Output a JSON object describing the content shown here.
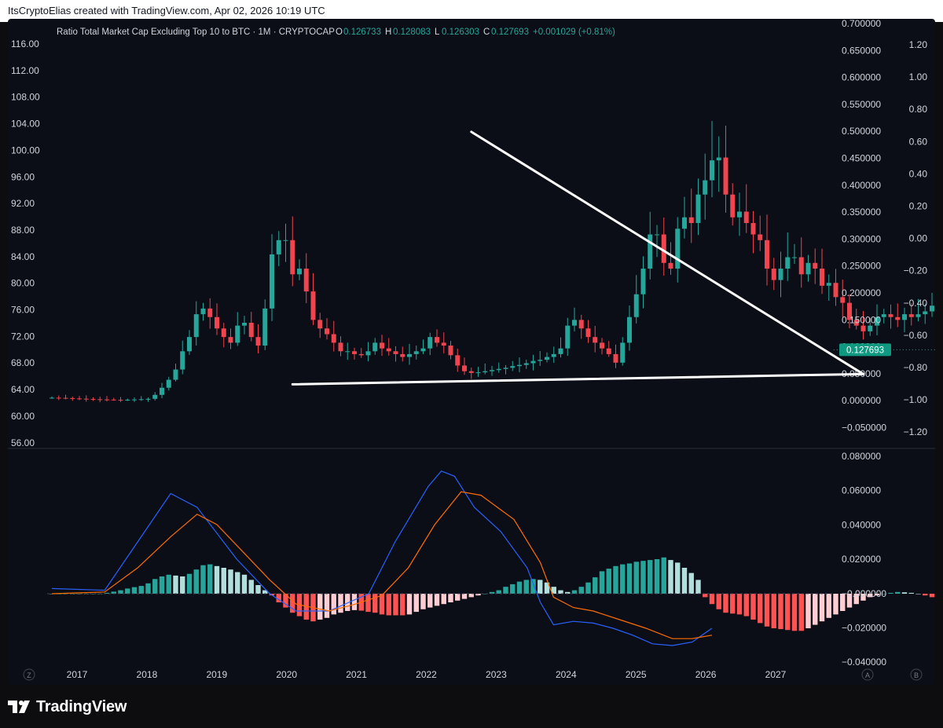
{
  "header": {
    "attribution": "ItsCryptoElias created with TradingView.com, Apr 02, 2026 10:19 UTC"
  },
  "legend": {
    "symbol": "Ratio Total Market Cap Excluding Top 10 to BTC · 1M · CRYPTOCAP",
    "o_label": "O",
    "o_value": "0.126733",
    "h_label": "H",
    "h_value": "0.128083",
    "l_label": "L",
    "l_value": "0.126303",
    "c_label": "C",
    "c_value": "0.127693",
    "change": "+0.001029 (+0.81%)"
  },
  "colors": {
    "background": "#0b0e16",
    "up": "#26a69a",
    "down": "#f0444f",
    "hist_up_strong": "#26a69a",
    "hist_up_weak": "#b2dfdb",
    "hist_down_strong": "#ff5252",
    "hist_down_weak": "#ffcdd2",
    "macd_line": "#2962ff",
    "signal_line": "#ff6d00",
    "price_badge": "#0f9981",
    "axis_text": "#d1d4dc",
    "trendline": "#ffffff"
  },
  "last_price_badge": "0.127693",
  "axes": {
    "left_ticks": [
      "116.00",
      "112.00",
      "108.00",
      "104.00",
      "100.00",
      "96.00",
      "92.00",
      "88.00",
      "84.00",
      "80.00",
      "76.00",
      "72.00",
      "68.00",
      "64.00",
      "60.00",
      "56.00"
    ],
    "right_ticks": [
      "0.700000",
      "0.650000",
      "0.600000",
      "0.550000",
      "0.500000",
      "0.450000",
      "0.400000",
      "0.350000",
      "0.300000",
      "0.250000",
      "0.200000",
      "0.150000",
      "0.100000",
      "0.050000",
      "0.000000",
      "−0.050000"
    ],
    "far_right_ticks": [
      "1.20",
      "1.00",
      "0.80",
      "0.60",
      "0.40",
      "0.20",
      "0.00",
      "−0.20",
      "−0.40",
      "−0.60",
      "−0.80",
      "−1.00",
      "−1.20"
    ],
    "macd_ticks": [
      "0.080000",
      "0.060000",
      "0.040000",
      "0.020000",
      "−0.000000",
      "−0.020000",
      "−0.040000"
    ],
    "x_labels": [
      "2017",
      "2018",
      "2019",
      "2020",
      "2021",
      "2022",
      "2023",
      "2024",
      "2025",
      "2026",
      "2027"
    ],
    "corner_left": "Z",
    "corner_a": "A",
    "corner_b": "B"
  },
  "chart_data": [
    {
      "type": "candlestick",
      "title": "Ratio Total Market Cap Excluding Top 10 to BTC · 1M · CRYPTOCAP",
      "ylim": [
        -0.08,
        0.72
      ],
      "y_scale": "linear",
      "candles_close": [
        0.0435,
        0.0432,
        0.0428,
        0.0422,
        0.0418,
        0.0412,
        0.0408,
        0.0405,
        0.0402,
        0.0398,
        0.0396,
        0.04,
        0.0404,
        0.0409,
        0.0415,
        0.0485,
        0.061,
        0.075,
        0.093,
        0.125,
        0.15,
        0.19,
        0.2,
        0.185,
        0.165,
        0.15,
        0.14,
        0.17,
        0.175,
        0.15,
        0.135,
        0.2,
        0.295,
        0.32,
        0.32,
        0.26,
        0.27,
        0.23,
        0.18,
        0.165,
        0.155,
        0.14,
        0.125,
        0.125,
        0.12,
        0.118,
        0.125,
        0.14,
        0.13,
        0.125,
        0.12,
        0.115,
        0.12,
        0.125,
        0.13,
        0.15,
        0.14,
        0.135,
        0.118,
        0.1,
        0.09,
        0.087,
        0.088,
        0.09,
        0.092,
        0.094,
        0.096,
        0.099,
        0.101,
        0.104,
        0.108,
        0.11,
        0.115,
        0.12,
        0.13,
        0.17,
        0.18,
        0.165,
        0.15,
        0.14,
        0.13,
        0.12,
        0.105,
        0.14,
        0.185,
        0.225,
        0.27,
        0.33,
        0.33,
        0.28,
        0.27,
        0.34,
        0.36,
        0.35,
        0.4,
        0.425,
        0.46,
        0.465,
        0.4,
        0.36,
        0.37,
        0.35,
        0.33,
        0.32,
        0.27,
        0.25,
        0.27,
        0.29,
        0.29,
        0.26,
        0.28,
        0.27,
        0.24,
        0.245,
        0.22,
        0.21,
        0.18,
        0.17,
        0.16,
        0.17,
        0.185,
        0.19,
        0.185,
        0.18,
        0.19,
        0.185,
        0.19,
        0.195,
        0.205,
        0.2,
        0.19,
        0.195,
        0.175,
        0.155,
        0.15,
        0.145,
        0.14,
        0.145,
        0.15,
        0.16,
        0.15,
        0.15,
        0.135,
        0.15,
        0.155,
        0.14,
        0.135,
        0.125,
        0.115,
        0.11,
        0.105,
        0.1,
        0.11,
        0.12,
        0.115,
        0.11,
        0.11,
        0.105,
        0.125,
        0.128,
        0.122,
        0.12,
        0.123,
        0.122,
        0.1267,
        0.1277
      ]
    },
    {
      "type": "line",
      "name": "Trendline",
      "points": [
        [
          "2021-10",
          0.51
        ],
        [
          "2026-07",
          0.085
        ]
      ]
    },
    {
      "type": "line",
      "name": "Trendline",
      "points": [
        [
          "2019-08",
          0.067
        ],
        [
          "2026-07",
          0.085
        ]
      ]
    },
    {
      "type": "bar",
      "title": "MACD",
      "ylim": [
        -0.042,
        0.082
      ],
      "histogram": [
        0.0,
        0.0,
        0.0,
        0.0,
        0.0,
        0.0,
        0.0,
        0.0,
        0.0005,
        0.0012,
        0.002,
        0.003,
        0.0038,
        0.0045,
        0.006,
        0.0085,
        0.01,
        0.011,
        0.0105,
        0.01,
        0.0115,
        0.014,
        0.0165,
        0.017,
        0.016,
        0.015,
        0.014,
        0.0125,
        0.011,
        0.008,
        0.005,
        0.002,
        -0.001,
        -0.005,
        -0.008,
        -0.011,
        -0.013,
        -0.015,
        -0.016,
        -0.015,
        -0.014,
        -0.012,
        -0.011,
        -0.01,
        -0.0095,
        -0.0098,
        -0.0105,
        -0.011,
        -0.012,
        -0.0125,
        -0.0125,
        -0.0125,
        -0.012,
        -0.0105,
        -0.009,
        -0.008,
        -0.007,
        -0.006,
        -0.005,
        -0.004,
        -0.003,
        -0.002,
        -0.001,
        0.0,
        0.001,
        0.002,
        0.004,
        0.0055,
        0.007,
        0.008,
        0.0085,
        0.008,
        0.0065,
        0.004,
        0.002,
        0.001,
        0.002,
        0.004,
        0.0065,
        0.0095,
        0.013,
        0.0145,
        0.016,
        0.017,
        0.0175,
        0.0185,
        0.019,
        0.0195,
        0.02,
        0.021,
        0.0195,
        0.018,
        0.015,
        0.012,
        0.008,
        -0.002,
        -0.006,
        -0.009,
        -0.011,
        -0.0115,
        -0.012,
        -0.013,
        -0.015,
        -0.017,
        -0.019,
        -0.02,
        -0.0205,
        -0.021,
        -0.0215,
        -0.0215,
        -0.02,
        -0.018,
        -0.016,
        -0.014,
        -0.012,
        -0.01,
        -0.008,
        -0.006,
        -0.004,
        -0.002,
        -0.001,
        0.0,
        0.0005,
        0.001,
        0.0008,
        0.0005,
        0.0,
        -0.001,
        -0.002,
        -0.003,
        -0.004,
        -0.005,
        -0.0055,
        -0.0058,
        -0.006,
        -0.006,
        -0.0058,
        -0.0055,
        -0.005,
        -0.0045,
        -0.004,
        -0.004,
        -0.0045,
        -0.005,
        -0.0055,
        -0.0058,
        -0.006,
        -0.006,
        -0.0058,
        -0.0055,
        -0.0045,
        -0.0035,
        -0.0025,
        -0.0015,
        -0.0008,
        0.0,
        0.0005,
        0.001,
        0.0015,
        0.002,
        0.0025,
        0.003,
        0.0035
      ],
      "series": [
        {
          "name": "MACD",
          "anchor_points": [
            [
              0,
              0.003
            ],
            [
              16,
              0.002
            ],
            [
              26,
              0.03
            ],
            [
              36,
              0.058
            ],
            [
              44,
              0.05
            ],
            [
              56,
              0.02
            ],
            [
              66,
              0.0
            ],
            [
              74,
              -0.01
            ],
            [
              84,
              -0.01
            ],
            [
              90,
              -0.005
            ],
            [
              96,
              0.0
            ],
            [
              104,
              0.03
            ],
            [
              114,
              0.062
            ],
            [
              118,
              0.071
            ],
            [
              122,
              0.068
            ],
            [
              128,
              0.05
            ],
            [
              136,
              0.036
            ],
            [
              144,
              0.015
            ],
            [
              148,
              -0.005
            ],
            [
              152,
              -0.018
            ],
            [
              158,
              -0.016
            ],
            [
              164,
              -0.017
            ],
            [
              170,
              -0.02
            ],
            [
              176,
              -0.024
            ],
            [
              182,
              -0.029
            ],
            [
              188,
              -0.03
            ],
            [
              194,
              -0.028
            ],
            [
              200,
              -0.02
            ]
          ]
        },
        {
          "name": "Signal",
          "anchor_points": [
            [
              0,
              0.0
            ],
            [
              16,
              0.001
            ],
            [
              26,
              0.015
            ],
            [
              36,
              0.033
            ],
            [
              44,
              0.046
            ],
            [
              50,
              0.04
            ],
            [
              58,
              0.024
            ],
            [
              66,
              0.008
            ],
            [
              74,
              -0.006
            ],
            [
              84,
              -0.01
            ],
            [
              92,
              -0.006
            ],
            [
              100,
              -0.001
            ],
            [
              108,
              0.015
            ],
            [
              116,
              0.04
            ],
            [
              124,
              0.059
            ],
            [
              130,
              0.057
            ],
            [
              140,
              0.043
            ],
            [
              148,
              0.018
            ],
            [
              152,
              -0.002
            ],
            [
              158,
              -0.008
            ],
            [
              164,
              -0.01
            ],
            [
              172,
              -0.015
            ],
            [
              180,
              -0.02
            ],
            [
              188,
              -0.026
            ],
            [
              194,
              -0.026
            ],
            [
              200,
              -0.024
            ]
          ]
        }
      ]
    }
  ],
  "brand": {
    "logo_text": "TradingView"
  }
}
